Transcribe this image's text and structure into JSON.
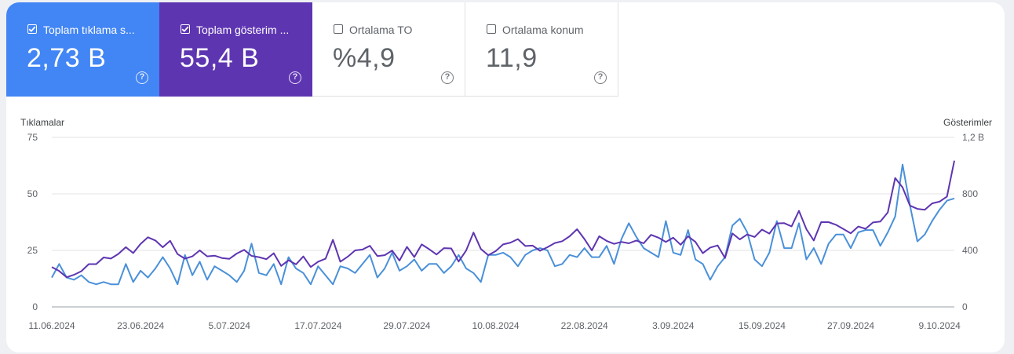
{
  "metrics": [
    {
      "id": "clicks",
      "label": "Toplam tıklama s...",
      "value": "2,73 B",
      "checked": true,
      "color": "#4285f4"
    },
    {
      "id": "impressions",
      "label": "Toplam gösterim ...",
      "value": "55,4 B",
      "checked": true,
      "color": "#5e35b1"
    },
    {
      "id": "ctr",
      "label": "Ortalama TO",
      "value": "%4,9",
      "checked": false
    },
    {
      "id": "position",
      "label": "Ortalama konum",
      "value": "11,9",
      "checked": false
    }
  ],
  "help_glyph": "?",
  "chart_data": {
    "type": "line",
    "left_axis_title": "Tıklamalar",
    "right_axis_title": "Gösterimler",
    "left_ticks": [
      0,
      25,
      50,
      75
    ],
    "left_tick_labels": [
      "0",
      "25",
      "50",
      "75"
    ],
    "right_ticks": [
      0,
      400,
      800,
      1200
    ],
    "right_tick_labels": [
      "0",
      "400",
      "800",
      "1,2 B"
    ],
    "x_tick_labels": [
      "11.06.2024",
      "23.06.2024",
      "5.07.2024",
      "17.07.2024",
      "29.07.2024",
      "10.08.2024",
      "22.08.2024",
      "3.09.2024",
      "15.09.2024",
      "27.09.2024",
      "9.10.2024"
    ],
    "x_tick_index": [
      0,
      12,
      24,
      36,
      48,
      60,
      72,
      84,
      96,
      108,
      120
    ],
    "ylim_left": [
      0,
      75
    ],
    "ylim_right": [
      0,
      1200
    ],
    "grid": true,
    "series": [
      {
        "name": "Tıklamalar",
        "axis": "left",
        "color": "#4a90d9",
        "values": [
          13,
          19,
          13,
          12,
          14,
          11,
          10,
          11,
          10,
          10,
          19,
          11,
          16,
          13,
          17,
          22,
          17,
          10,
          23,
          14,
          20,
          12,
          18,
          16,
          14,
          11,
          16,
          28,
          15,
          14,
          19,
          10,
          22,
          17,
          15,
          10,
          18,
          14,
          10,
          18,
          17,
          15,
          19,
          23,
          13,
          17,
          24,
          16,
          18,
          21,
          16,
          19,
          19,
          15,
          18,
          23,
          17,
          15,
          11,
          23,
          23,
          24,
          22,
          18,
          23,
          25,
          26,
          25,
          18,
          19,
          23,
          22,
          26,
          22,
          22,
          27,
          19,
          30,
          37,
          31,
          26,
          24,
          22,
          38,
          24,
          23,
          34,
          21,
          19,
          12,
          18,
          22,
          36,
          39,
          33,
          21,
          18,
          24,
          38,
          26,
          26,
          37,
          21,
          26,
          19,
          28,
          32,
          32,
          26,
          33,
          34,
          34,
          27,
          33,
          40,
          63,
          45,
          29,
          32,
          38,
          43,
          47,
          48
        ]
      },
      {
        "name": "Gösterimler",
        "axis": "right",
        "color": "#5e35b1",
        "values": [
          282,
          254,
          210,
          227,
          253,
          303,
          303,
          350,
          342,
          375,
          423,
          381,
          446,
          493,
          470,
          422,
          468,
          374,
          341,
          358,
          400,
          358,
          363,
          346,
          340,
          378,
          404,
          361,
          352,
          338,
          380,
          290,
          330,
          301,
          357,
          282,
          320,
          341,
          475,
          320,
          355,
          400,
          406,
          432,
          360,
          366,
          399,
          328,
          425,
          353,
          442,
          409,
          371,
          416,
          414,
          321,
          399,
          526,
          410,
          366,
          395,
          442,
          455,
          480,
          431,
          434,
          397,
          423,
          452,
          465,
          500,
          550,
          480,
          400,
          500,
          467,
          446,
          460,
          450,
          470,
          450,
          510,
          490,
          460,
          490,
          440,
          500,
          460,
          380,
          420,
          435,
          346,
          520,
          478,
          513,
          495,
          547,
          519,
          591,
          593,
          570,
          680,
          550,
          470,
          600,
          600,
          581,
          551,
          521,
          569,
          553,
          598,
          604,
          669,
          912,
          846,
          717,
          694,
          687,
          733,
          745,
          781,
          1035
        ]
      }
    ]
  }
}
